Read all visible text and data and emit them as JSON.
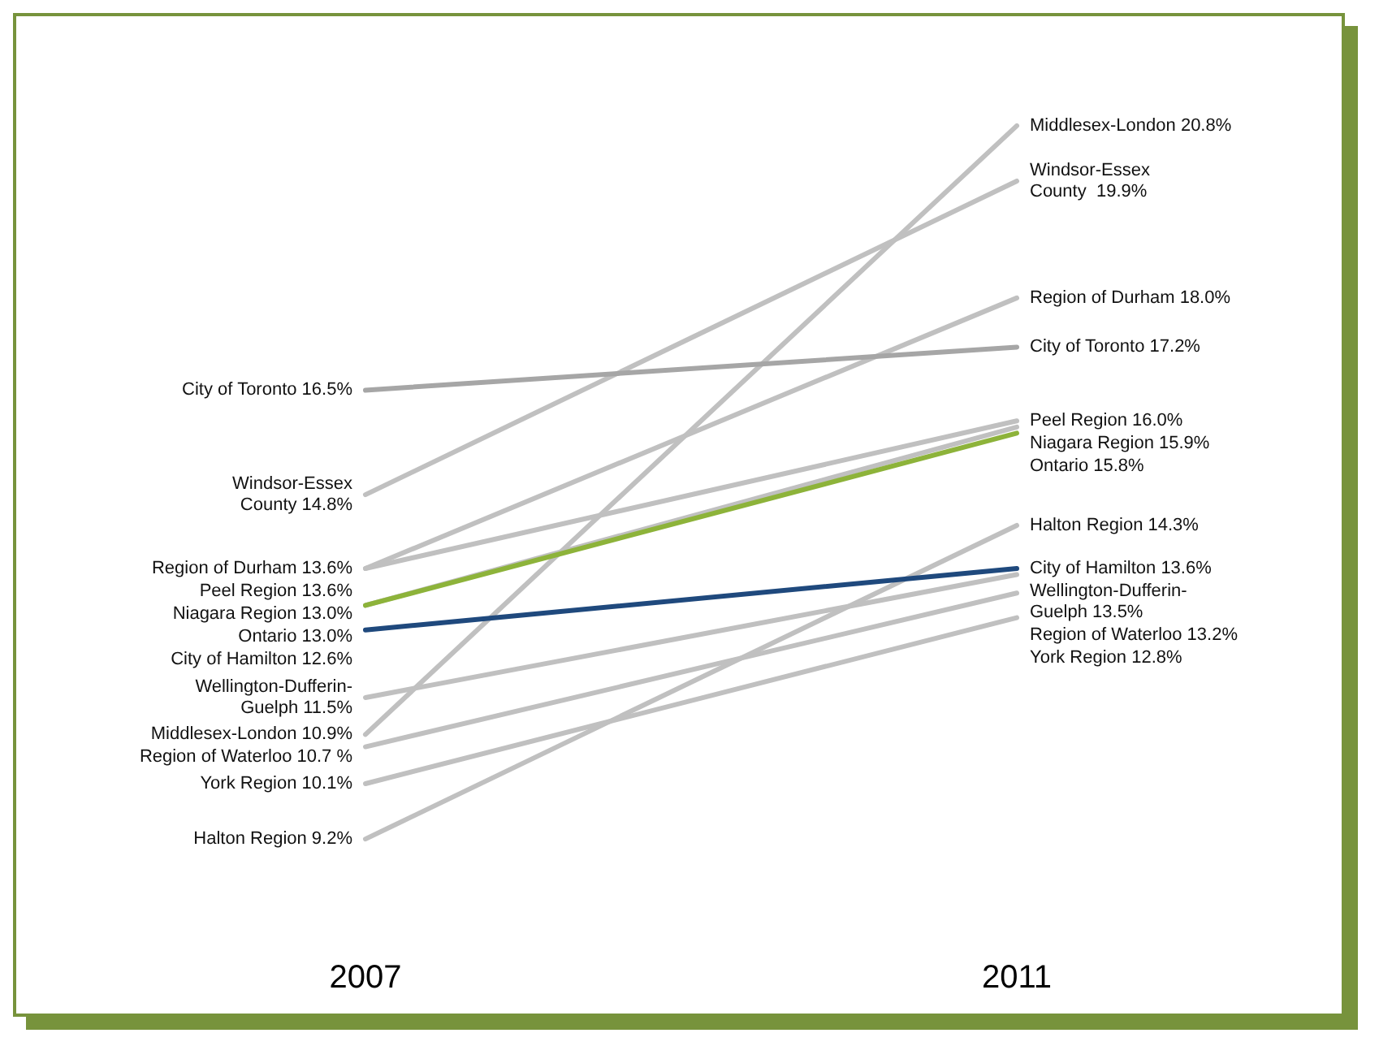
{
  "chart_data": {
    "type": "line",
    "categories": [
      "2007",
      "2011"
    ],
    "grid": false,
    "marker": "none",
    "series": [
      {
        "color": "#c0c0c0",
        "values": [
          10.9,
          20.8
        ],
        "value_labels": [
          "Middlesex-London 10.9%",
          "Middlesex-London 20.8%"
        ]
      },
      {
        "color": "#c0c0c0",
        "values": [
          14.8,
          19.9
        ],
        "value_labels": [
          "Windsor-Essex\nCounty 14.8%",
          "Windsor-Essex\nCounty  19.9%"
        ]
      },
      {
        "color": "#c0c0c0",
        "values": [
          13.6,
          18.0
        ],
        "value_labels": [
          "Region of Durham 13.6%",
          "Region of Durham 18.0%"
        ]
      },
      {
        "color": "#a6a6a6",
        "values": [
          16.5,
          17.2
        ],
        "value_labels": [
          "City of Toronto 16.5%",
          "City of Toronto 17.2%"
        ]
      },
      {
        "color": "#c0c0c0",
        "values": [
          13.6,
          16.0
        ],
        "value_labels": [
          "Peel Region 13.6%",
          "Peel Region 16.0%"
        ]
      },
      {
        "color": "#c0c0c0",
        "values": [
          13.0,
          15.9
        ],
        "value_labels": [
          "Niagara Region 13.0%",
          "Niagara Region 15.9%"
        ]
      },
      {
        "color": "#c0c0c0",
        "values": [
          9.2,
          14.3
        ],
        "value_labels": [
          "Halton Region 9.2%",
          "Halton Region 14.3%"
        ]
      },
      {
        "color": "#c0c0c0",
        "values": [
          10.7,
          13.2
        ],
        "value_labels": [
          "Region of Waterloo 10.7 %",
          "Region of Waterloo 13.2%"
        ]
      },
      {
        "color": "#c0c0c0",
        "values": [
          10.1,
          12.8
        ],
        "value_labels": [
          "York Region 10.1%",
          "York Region 12.8%"
        ]
      },
      {
        "color": "#c0c0c0",
        "values": [
          11.5,
          13.5
        ],
        "value_labels": [
          "Wellington-Dufferin-\nGuelph 11.5%",
          "Wellington-Dufferin-\nGuelph 13.5%"
        ]
      },
      {
        "color": "#8db33a",
        "values": [
          13.0,
          15.8
        ],
        "value_labels": [
          "Ontario 13.0%",
          "Ontario 15.8%"
        ]
      },
      {
        "color": "#1f497d",
        "values": [
          12.6,
          13.6
        ],
        "value_labels": [
          "City of Hamilton 12.6%",
          "City of Hamilton 13.6%"
        ]
      }
    ]
  }
}
